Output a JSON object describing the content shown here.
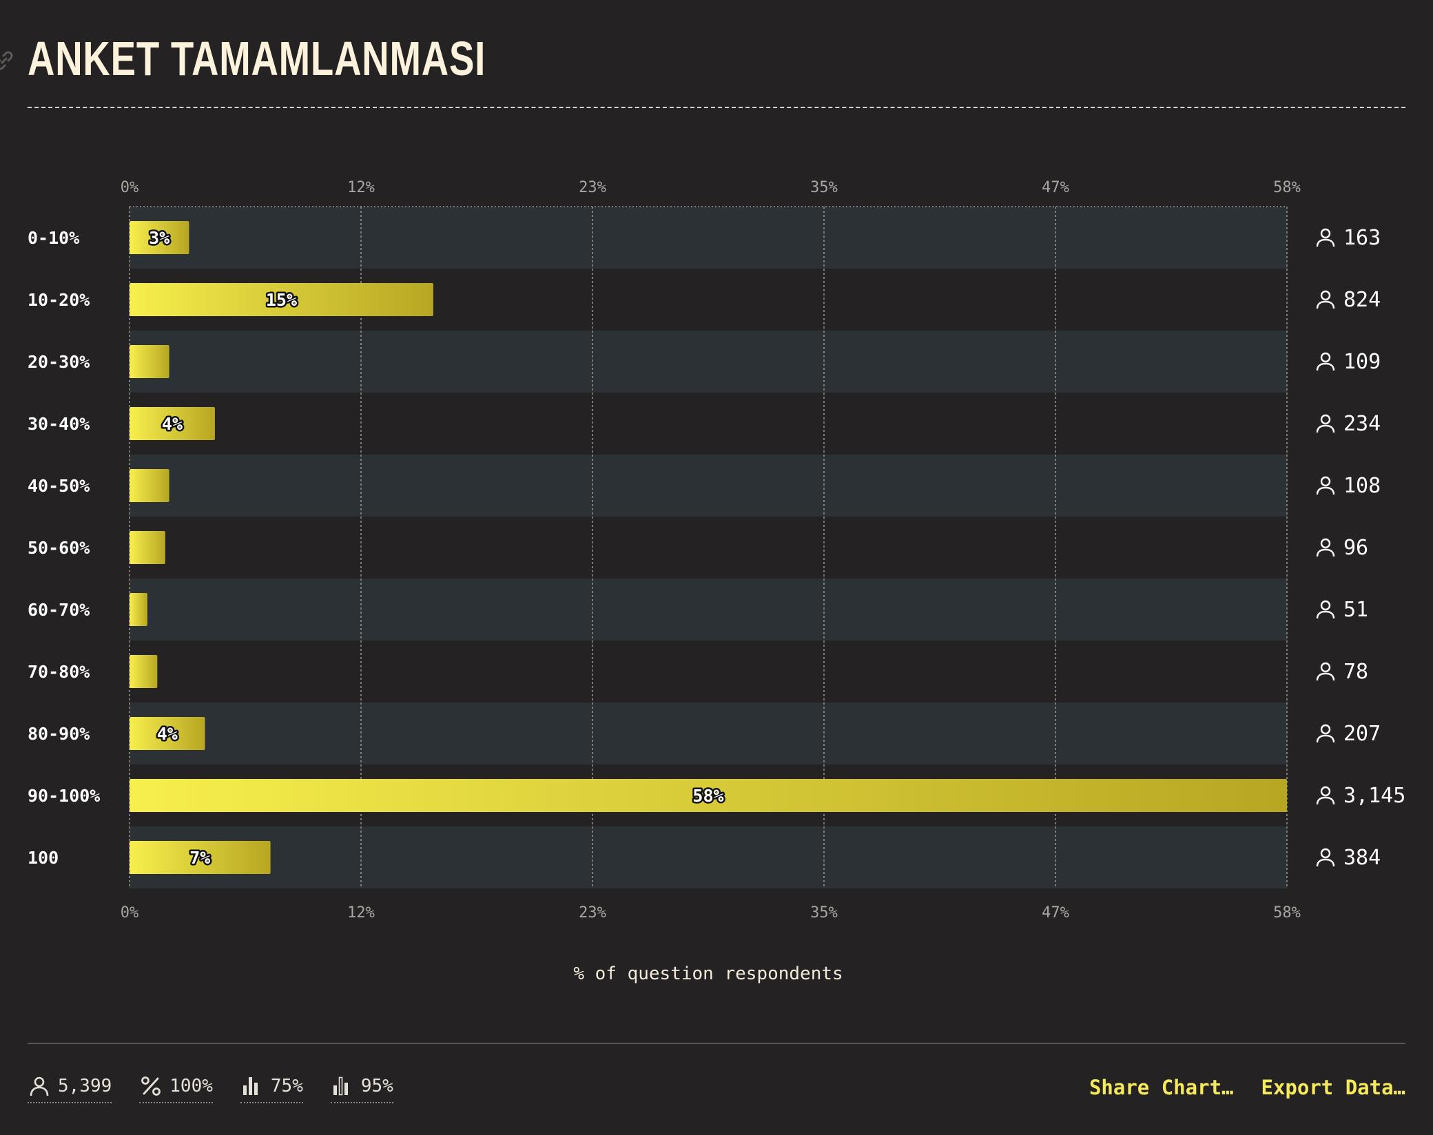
{
  "title": "ANKET TAMAMLANMASI",
  "colors": {
    "background": "#252223",
    "band": "#2b3134",
    "bar_start": "#f7ef4d",
    "bar_end": "#b7a623",
    "accent": "#f5ea5c"
  },
  "chart_data": {
    "type": "bar",
    "orientation": "horizontal",
    "categories": [
      "0-10%",
      "10-20%",
      "20-30%",
      "30-40%",
      "40-50%",
      "50-60%",
      "60-70%",
      "70-80%",
      "80-90%",
      "90-100%",
      "100"
    ],
    "values": [
      3.0,
      15.3,
      2.0,
      4.3,
      2.0,
      1.8,
      0.9,
      1.4,
      3.8,
      58.3,
      7.1
    ],
    "data_labels": [
      "3%",
      "15%",
      "",
      "4%",
      "",
      "",
      "",
      "",
      "4%",
      "58%",
      "7%"
    ],
    "counts": [
      "163",
      "824",
      "109",
      "234",
      "108",
      "96",
      "51",
      "78",
      "207",
      "3,145",
      "384"
    ],
    "count_icon": "user-icon",
    "x_ticks": [
      "0%",
      "12%",
      "23%",
      "35%",
      "47%",
      "58%"
    ],
    "xlim": [
      0,
      58.3
    ],
    "xlabel": "% of question respondents",
    "grid": true
  },
  "footer": {
    "stats": [
      {
        "icon": "user-icon",
        "value": "5,399"
      },
      {
        "icon": "percent-icon",
        "value": "100%"
      },
      {
        "icon": "bar-chart-icon",
        "value": "75%"
      },
      {
        "icon": "bar-chart-outline-icon",
        "value": "95%"
      }
    ],
    "share_label": "Share Chart…",
    "export_label": "Export Data…"
  }
}
